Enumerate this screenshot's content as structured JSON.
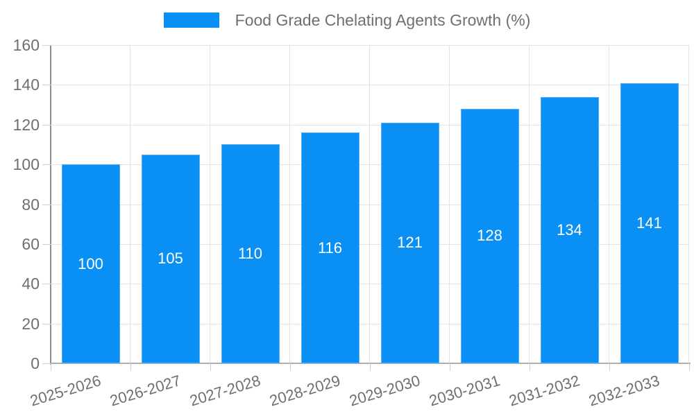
{
  "legend": {
    "label": "Food Grade Chelating Agents Growth (%)"
  },
  "colors": {
    "bar": "#0a90f5",
    "bar_border": "#56b0f7",
    "grid": "#e2e2e2",
    "axis_y": "#8d8d8d",
    "axis_x": "#aeaeae",
    "tick_mark": "#cfcfcf",
    "text": "#6f6f6f",
    "value_label": "#ffffff",
    "background": "#ffffff"
  },
  "chart_data": {
    "type": "bar",
    "title": "",
    "xlabel": "",
    "ylabel": "",
    "categories": [
      "2025-2026",
      "2026-2027",
      "2027-2028",
      "2028-2029",
      "2029-2030",
      "2030-2031",
      "2031-2032",
      "2032-2033"
    ],
    "series": [
      {
        "name": "Food Grade Chelating Agents Growth (%)",
        "values": [
          100,
          105,
          110,
          116,
          121,
          128,
          134,
          141
        ]
      }
    ],
    "bar_value_labels_shown": true,
    "yticks": [
      0,
      20,
      40,
      60,
      80,
      100,
      120,
      140,
      160
    ],
    "ylim": [
      0,
      160
    ],
    "grid": true,
    "legend_position": "top-center",
    "x_tick_rotation_deg": -17
  }
}
